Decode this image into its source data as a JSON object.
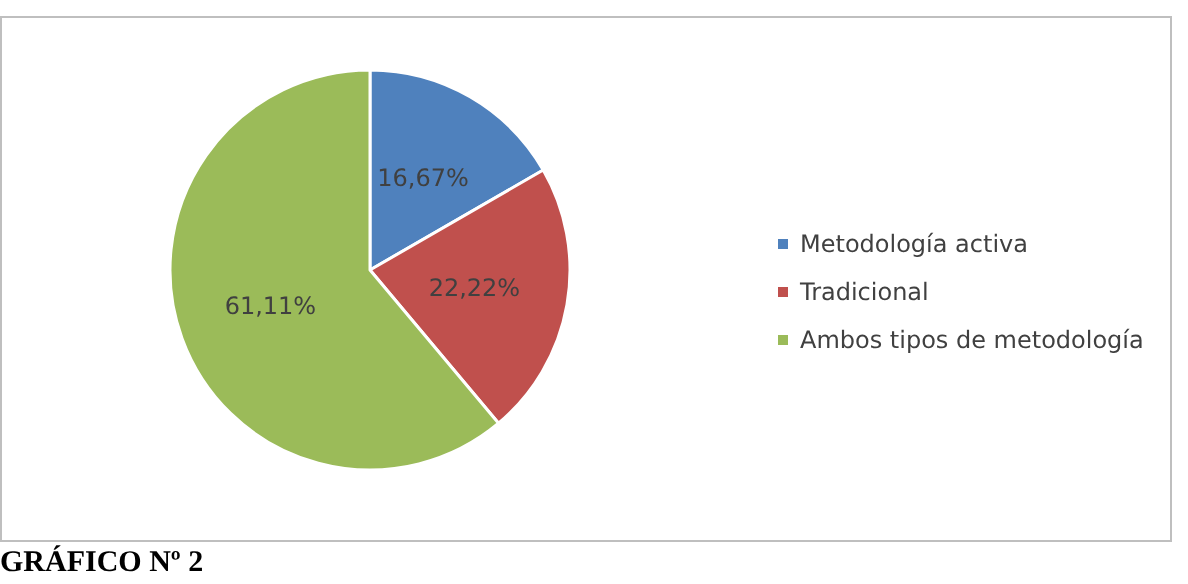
{
  "chart_data": {
    "type": "pie",
    "categories": [
      "Metodología activa",
      "Tradicional",
      "Ambos tipos de metodología"
    ],
    "values": [
      16.67,
      22.22,
      61.11
    ],
    "value_labels": [
      "16,67%",
      "22,22%",
      "61,11%"
    ],
    "colors": [
      "#4f81bd",
      "#c0504d",
      "#9bbb59"
    ],
    "legend": "right",
    "annotations": [
      "GRÁFICO Nº 2"
    ]
  }
}
